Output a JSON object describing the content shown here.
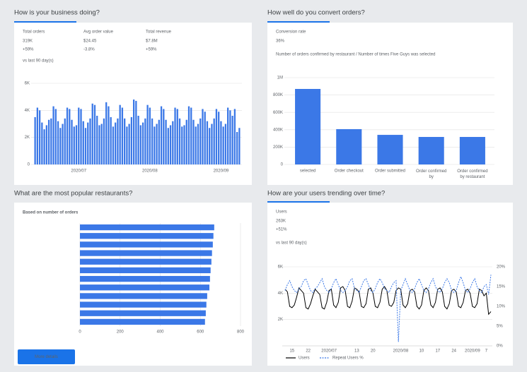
{
  "chart_data": [
    {
      "type": "bar",
      "title": "How is your business doing?",
      "kpis": [
        {
          "label": "Total orders",
          "value": "319K",
          "change": "+59%"
        },
        {
          "label": "Avg order value",
          "value": "$24.45",
          "change": "-3.8%"
        },
        {
          "label": "Total revenue",
          "value": "$7.8M",
          "change": "+59%"
        }
      ],
      "note": "vs last 90 day(s)",
      "categories": [
        null,
        null,
        null,
        null,
        null,
        null,
        null,
        null,
        null,
        null,
        null,
        null,
        null,
        null,
        null,
        null,
        null,
        null,
        null,
        "2020/07",
        null,
        null,
        null,
        null,
        null,
        null,
        null,
        null,
        null,
        null,
        null,
        null,
        null,
        null,
        null,
        null,
        null,
        null,
        null,
        null,
        null,
        null,
        null,
        null,
        null,
        null,
        null,
        null,
        null,
        null,
        "2020/08",
        null,
        null,
        null,
        null,
        null,
        null,
        null,
        null,
        null,
        null,
        null,
        null,
        null,
        null,
        null,
        null,
        null,
        null,
        null,
        null,
        null,
        null,
        null,
        null,
        null,
        null,
        null,
        null,
        null,
        null,
        "2020/09",
        null,
        null,
        null,
        null,
        null,
        null,
        null,
        null
      ],
      "values": [
        3500,
        4200,
        4000,
        3100,
        2600,
        2900,
        3300,
        3400,
        4300,
        4100,
        3200,
        2700,
        3000,
        3400,
        4200,
        4100,
        3300,
        2800,
        2900,
        4200,
        4100,
        3200,
        2700,
        3100,
        3400,
        4500,
        4400,
        3600,
        2900,
        3000,
        3400,
        4600,
        4300,
        3500,
        2800,
        3100,
        3400,
        4400,
        4200,
        3400,
        2800,
        3000,
        3500,
        4800,
        4700,
        3600,
        2900,
        3100,
        3400,
        4400,
        4200,
        3400,
        2800,
        3000,
        3300,
        4300,
        4100,
        3300,
        2700,
        2900,
        3200,
        4200,
        4100,
        3400,
        2800,
        2900,
        3300,
        4300,
        4200,
        3300,
        2800,
        3000,
        3400,
        4100,
        3900,
        3200,
        2700,
        3000,
        3400,
        4100,
        3900,
        3200,
        2800,
        3000,
        4200,
        4000,
        3600,
        4100,
        2400,
        2700
      ],
      "color": "#3b78e7",
      "ylim": [
        0,
        6000
      ],
      "yticks": [
        0,
        {
          "value": 2000,
          "label": "2K"
        },
        {
          "value": 4000,
          "label": "4K"
        },
        {
          "value": 6000,
          "label": "6K"
        }
      ],
      "grid": true
    },
    {
      "type": "bar",
      "title": "How well do you convert orders?",
      "kpis": [
        {
          "label": "Conversion rate",
          "value": "36%"
        }
      ],
      "subtitle": "Number of orders confirmed by restaurant / Number of times Five Guys was selected",
      "categories": [
        "selected",
        "Order checkout",
        "Order submitted",
        "Order confirmed by",
        "Order confirmed by restaurant"
      ],
      "values": [
        870000,
        407000,
        341000,
        317000,
        317000
      ],
      "color": "#3b78e7",
      "ylim": [
        0,
        1000000
      ],
      "yticks": [
        0,
        {
          "value": 200000,
          "label": "200K"
        },
        {
          "value": 400000,
          "label": "400K"
        },
        {
          "value": 600000,
          "label": "600K"
        },
        {
          "value": 800000,
          "label": "800K"
        },
        {
          "value": 1000000,
          "label": "1M"
        }
      ],
      "grid": true
    },
    {
      "type": "hbar",
      "title": "What are the most popular restaurants?",
      "subtitle": "Based on number of orders",
      "categories": [
        null,
        null,
        null,
        null,
        null,
        null,
        null,
        null,
        null,
        null,
        null,
        null
      ],
      "values": [
        669,
        665,
        662,
        658,
        655,
        651,
        648,
        645,
        634,
        630,
        627,
        623
      ],
      "color": "#3b78e7",
      "xlim": [
        0,
        800
      ],
      "xticks": [
        0,
        200,
        400,
        600,
        800
      ],
      "grid": true,
      "button": "More details"
    },
    {
      "type": "line",
      "title": "How are your users trending over time?",
      "kpis": [
        {
          "label": "Users",
          "value": "263K",
          "change": "+51%"
        }
      ],
      "note": "vs last 90 day(s)",
      "categories": [
        null,
        null,
        null,
        "15",
        null,
        null,
        null,
        null,
        null,
        null,
        "22",
        null,
        null,
        null,
        null,
        null,
        null,
        null,
        null,
        "2020/07",
        null,
        null,
        null,
        null,
        null,
        null,
        null,
        null,
        null,
        null,
        null,
        "13",
        null,
        null,
        null,
        null,
        null,
        null,
        "20",
        null,
        null,
        null,
        null,
        null,
        null,
        null,
        null,
        null,
        null,
        null,
        "2020/08",
        null,
        null,
        null,
        null,
        null,
        null,
        null,
        null,
        "10",
        null,
        null,
        null,
        null,
        null,
        null,
        "17",
        null,
        null,
        null,
        null,
        null,
        null,
        "24",
        null,
        null,
        null,
        null,
        null,
        null,
        null,
        "2020/09",
        null,
        null,
        null,
        null,
        null,
        "7",
        null,
        null
      ],
      "series": [
        {
          "name": "Users",
          "color": "#000000",
          "values": [
            4300,
            4100,
            3000,
            2900,
            3100,
            3700,
            4400,
            4200,
            4000,
            2900,
            2800,
            3200,
            3800,
            4300,
            4100,
            3900,
            2900,
            2800,
            3300,
            4200,
            4300,
            3100,
            2900,
            3300,
            4400,
            4500,
            4200,
            3000,
            2900,
            3400,
            4400,
            4300,
            4100,
            3000,
            2900,
            3200,
            4300,
            4400,
            4000,
            3000,
            2900,
            3300,
            4300,
            4500,
            4200,
            3100,
            3000,
            3300,
            4200,
            4400,
            4300,
            3100,
            2900,
            3200,
            4200,
            4300,
            4100,
            3000,
            2800,
            3100,
            4200,
            4400,
            4200,
            3100,
            2900,
            3300,
            4300,
            4400,
            4100,
            3000,
            2800,
            3200,
            4200,
            4300,
            4100,
            3000,
            2900,
            3300,
            4200,
            4300,
            4000,
            3000,
            2900,
            3200,
            4300,
            4200,
            3800,
            4000,
            2400,
            2600
          ]
        },
        {
          "name": "Repeat Users %",
          "color": "#3b78e7",
          "dashed": true,
          "axis": "y2",
          "values": [
            14,
            15.5,
            16.5,
            15,
            14,
            13.5,
            14.5,
            15,
            16.5,
            17,
            15.5,
            14,
            13.5,
            14.5,
            15,
            16,
            17,
            15,
            14,
            13.5,
            14.5,
            16,
            17,
            15.5,
            14,
            13.5,
            14,
            15,
            16.5,
            17,
            14.5,
            14,
            13.5,
            15,
            16.5,
            17,
            15.5,
            14,
            13.5,
            14.5,
            16,
            17,
            16,
            14.5,
            14,
            13.5,
            15,
            16,
            16.5,
            1,
            14,
            15.5,
            17,
            15.5,
            14,
            13.5,
            14.5,
            16,
            17,
            15.5,
            14,
            13.5,
            14.5,
            16,
            17,
            15,
            14,
            13.5,
            14.5,
            16,
            17,
            16,
            14,
            13.5,
            14,
            16,
            17.5,
            16,
            14,
            13.5,
            14.5,
            16,
            17,
            15,
            14,
            13.5,
            15,
            15.5,
            13,
            18
          ]
        }
      ],
      "ylim": [
        0,
        6000
      ],
      "yticks": [
        {
          "value": 2000,
          "label": "2K"
        },
        {
          "value": 4000,
          "label": "4K"
        },
        {
          "value": 6000,
          "label": "6K"
        }
      ],
      "y2lim": [
        0,
        20
      ],
      "y2ticks": [
        {
          "value": 0,
          "label": "0%"
        },
        {
          "value": 5,
          "label": "5%"
        },
        {
          "value": 10,
          "label": "10%"
        },
        {
          "value": 15,
          "label": "15%"
        },
        {
          "value": 20,
          "label": "20%"
        }
      ],
      "grid": true
    }
  ]
}
